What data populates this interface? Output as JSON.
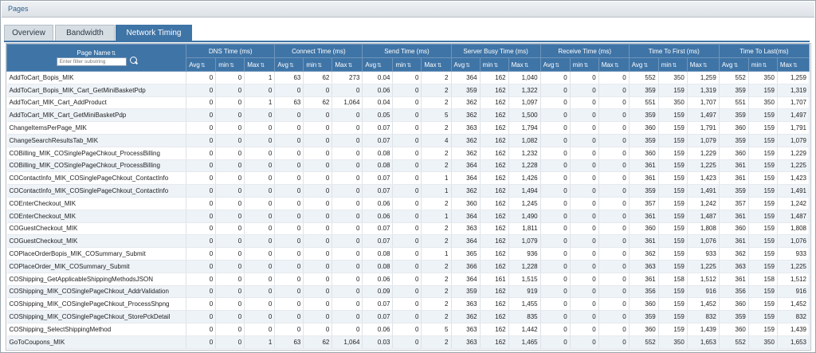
{
  "panel": {
    "title": "Pages"
  },
  "tabs": [
    {
      "label": "Overview",
      "active": false
    },
    {
      "label": "Bandwidth",
      "active": false
    },
    {
      "label": "Network Timing",
      "active": true
    }
  ],
  "table": {
    "page_name_header": "Page Name",
    "filter_placeholder": "Enter filter substring",
    "groups": [
      "DNS Time (ms)",
      "Connect Time (ms)",
      "Send Time (ms)",
      "Server Busy Time (ms)",
      "Receive Time (ms)",
      "Time To First (ms)",
      "Time To Last(ms)"
    ],
    "subcols": [
      "Avg",
      "min",
      "Max"
    ],
    "rows": [
      [
        "AddToCart_Bopis_MIK",
        "0",
        "0",
        "1",
        "63",
        "62",
        "273",
        "0.04",
        "0",
        "2",
        "364",
        "162",
        "1,040",
        "0",
        "0",
        "0",
        "552",
        "350",
        "1,259",
        "552",
        "350",
        "1,259"
      ],
      [
        "AddToCart_Bopis_MIK_Cart_GetMiniBasketPdp",
        "0",
        "0",
        "0",
        "0",
        "0",
        "0",
        "0.06",
        "0",
        "2",
        "359",
        "162",
        "1,322",
        "0",
        "0",
        "0",
        "359",
        "159",
        "1,319",
        "359",
        "159",
        "1,319"
      ],
      [
        "AddToCart_MIK_Cart_AddProduct",
        "0",
        "0",
        "1",
        "63",
        "62",
        "1,064",
        "0.04",
        "0",
        "2",
        "362",
        "162",
        "1,097",
        "0",
        "0",
        "0",
        "551",
        "350",
        "1,707",
        "551",
        "350",
        "1,707"
      ],
      [
        "AddToCart_MIK_Cart_GetMiniBasketPdp",
        "0",
        "0",
        "0",
        "0",
        "0",
        "0",
        "0.05",
        "0",
        "5",
        "362",
        "162",
        "1,500",
        "0",
        "0",
        "0",
        "359",
        "159",
        "1,497",
        "359",
        "159",
        "1,497"
      ],
      [
        "ChangeItemsPerPage_MIK",
        "0",
        "0",
        "0",
        "0",
        "0",
        "0",
        "0.07",
        "0",
        "2",
        "363",
        "162",
        "1,794",
        "0",
        "0",
        "0",
        "360",
        "159",
        "1,791",
        "360",
        "159",
        "1,791"
      ],
      [
        "ChangeSearchResultsTab_MIK",
        "0",
        "0",
        "0",
        "0",
        "0",
        "0",
        "0.07",
        "0",
        "4",
        "362",
        "162",
        "1,082",
        "0",
        "0",
        "0",
        "359",
        "159",
        "1,079",
        "359",
        "159",
        "1,079"
      ],
      [
        "COBilling_MIK_COSinglePageChkout_ProcessBilling",
        "0",
        "0",
        "0",
        "0",
        "0",
        "0",
        "0.08",
        "0",
        "2",
        "362",
        "162",
        "1,232",
        "0",
        "0",
        "0",
        "360",
        "159",
        "1,229",
        "360",
        "159",
        "1,229"
      ],
      [
        "COBilling_MIK_COSinglePageChkout_ProcessBilling",
        "0",
        "0",
        "0",
        "0",
        "0",
        "0",
        "0.08",
        "0",
        "2",
        "364",
        "162",
        "1,228",
        "0",
        "0",
        "0",
        "361",
        "159",
        "1,225",
        "361",
        "159",
        "1,225"
      ],
      [
        "COContactInfo_MIK_COSinglePageChkout_ContactInfo",
        "0",
        "0",
        "0",
        "0",
        "0",
        "0",
        "0.07",
        "0",
        "1",
        "364",
        "162",
        "1,426",
        "0",
        "0",
        "0",
        "361",
        "159",
        "1,423",
        "361",
        "159",
        "1,423"
      ],
      [
        "COContactInfo_MIK_COSinglePageChkout_ContactInfo",
        "0",
        "0",
        "0",
        "0",
        "0",
        "0",
        "0.07",
        "0",
        "1",
        "362",
        "162",
        "1,494",
        "0",
        "0",
        "0",
        "359",
        "159",
        "1,491",
        "359",
        "159",
        "1,491"
      ],
      [
        "COEnterCheckout_MIK",
        "0",
        "0",
        "0",
        "0",
        "0",
        "0",
        "0.06",
        "0",
        "2",
        "360",
        "162",
        "1,245",
        "0",
        "0",
        "0",
        "357",
        "159",
        "1,242",
        "357",
        "159",
        "1,242"
      ],
      [
        "COEnterCheckout_MIK",
        "0",
        "0",
        "0",
        "0",
        "0",
        "0",
        "0.06",
        "0",
        "1",
        "364",
        "162",
        "1,490",
        "0",
        "0",
        "0",
        "361",
        "159",
        "1,487",
        "361",
        "159",
        "1,487"
      ],
      [
        "COGuestCheckout_MIK",
        "0",
        "0",
        "0",
        "0",
        "0",
        "0",
        "0.07",
        "0",
        "2",
        "363",
        "162",
        "1,811",
        "0",
        "0",
        "0",
        "360",
        "159",
        "1,808",
        "360",
        "159",
        "1,808"
      ],
      [
        "COGuestCheckout_MIK",
        "0",
        "0",
        "0",
        "0",
        "0",
        "0",
        "0.07",
        "0",
        "2",
        "364",
        "162",
        "1,079",
        "0",
        "0",
        "0",
        "361",
        "159",
        "1,076",
        "361",
        "159",
        "1,076"
      ],
      [
        "COPlaceOrderBopis_MIK_COSummary_Submit",
        "0",
        "0",
        "0",
        "0",
        "0",
        "0",
        "0.08",
        "0",
        "1",
        "365",
        "162",
        "936",
        "0",
        "0",
        "0",
        "362",
        "159",
        "933",
        "362",
        "159",
        "933"
      ],
      [
        "COPlaceOrder_MIK_COSummary_Submit",
        "0",
        "0",
        "0",
        "0",
        "0",
        "0",
        "0.08",
        "0",
        "2",
        "366",
        "162",
        "1,228",
        "0",
        "0",
        "0",
        "363",
        "159",
        "1,225",
        "363",
        "159",
        "1,225"
      ],
      [
        "COShipping_GetApplicableShippingMethodsJSON",
        "0",
        "0",
        "0",
        "0",
        "0",
        "0",
        "0.06",
        "0",
        "2",
        "364",
        "161",
        "1,515",
        "0",
        "0",
        "0",
        "361",
        "158",
        "1,512",
        "361",
        "158",
        "1,512"
      ],
      [
        "COShipping_MIK_COSinglePageChkout_AddrValidation",
        "0",
        "0",
        "0",
        "0",
        "0",
        "0",
        "0.09",
        "0",
        "2",
        "359",
        "162",
        "919",
        "0",
        "0",
        "0",
        "356",
        "159",
        "916",
        "356",
        "159",
        "916"
      ],
      [
        "COShipping_MIK_COSinglePageChkout_ProcessShpng",
        "0",
        "0",
        "0",
        "0",
        "0",
        "0",
        "0.07",
        "0",
        "2",
        "363",
        "162",
        "1,455",
        "0",
        "0",
        "0",
        "360",
        "159",
        "1,452",
        "360",
        "159",
        "1,452"
      ],
      [
        "COShipping_MIK_COSinglePageChkout_StorePckDetail",
        "0",
        "0",
        "0",
        "0",
        "0",
        "0",
        "0.07",
        "0",
        "2",
        "362",
        "162",
        "835",
        "0",
        "0",
        "0",
        "359",
        "159",
        "832",
        "359",
        "159",
        "832"
      ],
      [
        "COShipping_SelectShippingMethod",
        "0",
        "0",
        "0",
        "0",
        "0",
        "0",
        "0.06",
        "0",
        "5",
        "363",
        "162",
        "1,442",
        "0",
        "0",
        "0",
        "360",
        "159",
        "1,439",
        "360",
        "159",
        "1,439"
      ],
      [
        "GoToCoupons_MIK",
        "0",
        "0",
        "1",
        "63",
        "62",
        "1,064",
        "0.03",
        "0",
        "2",
        "363",
        "162",
        "1,465",
        "0",
        "0",
        "0",
        "552",
        "350",
        "1,653",
        "552",
        "350",
        "1,653"
      ]
    ]
  },
  "colors": {
    "header_blue": "#3f74a6",
    "row_alt": "#eef3f8"
  },
  "icons": {
    "sort": "sort-arrows-icon",
    "search": "search-icon"
  }
}
